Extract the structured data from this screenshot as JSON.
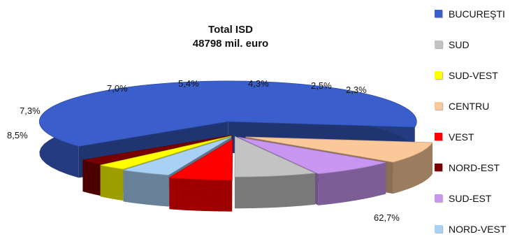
{
  "chart_data": {
    "type": "pie",
    "title": "Total ISD",
    "subtitle": "48798 mil. euro",
    "legend_position": "right",
    "categories": [
      "BUCUREŞTI",
      "SUD",
      "SUD-VEST",
      "CENTRU",
      "VEST",
      "NORD-EST",
      "SUD-EST",
      "NORD-VEST"
    ],
    "values": [
      62.7,
      7.0,
      2.5,
      8.5,
      5.4,
      2.3,
      7.3,
      4.3
    ],
    "value_labels": [
      "62,7%",
      "7,0%",
      "2,5%",
      "8,5%",
      "5,4%",
      "2,3%",
      "7,3%",
      "4,3%"
    ],
    "colors": [
      "#3a5fcd",
      "#c3c3c3",
      "#ffff00",
      "#fbc89a",
      "#ff0000",
      "#7a0000",
      "#c896f0",
      "#a9d0f5"
    ]
  }
}
